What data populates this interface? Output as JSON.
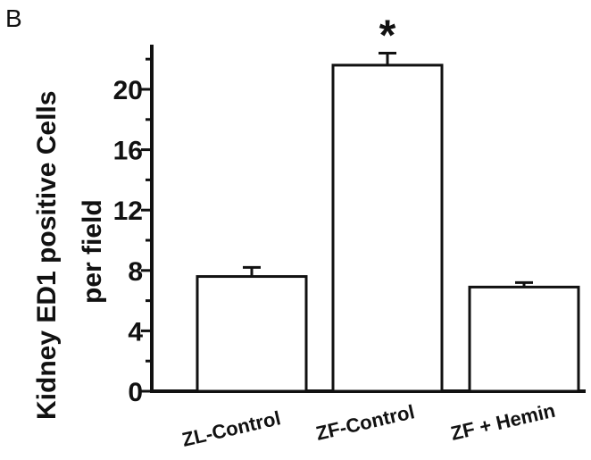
{
  "panel_label": "B",
  "chart_data": {
    "type": "bar",
    "categories": [
      "ZL-Control",
      "ZF-Control",
      "ZF + Hemin"
    ],
    "values": [
      7.6,
      21.6,
      6.9
    ],
    "errors": [
      0.6,
      0.8,
      0.3
    ],
    "annotations": [
      "",
      "*",
      ""
    ],
    "ylabel_lines": [
      "Kidney  ED1 positive Cells",
      "per  field"
    ],
    "xlabel": "",
    "ylim": [
      0,
      23
    ],
    "yticks": [
      0,
      4,
      8,
      12,
      16,
      20
    ],
    "ytick_labels": [
      "0",
      "4",
      "8",
      "12",
      "16",
      "20"
    ],
    "bar_fill": "#ffffff",
    "bar_stroke": "#111111",
    "grid": false,
    "legend": "none"
  }
}
